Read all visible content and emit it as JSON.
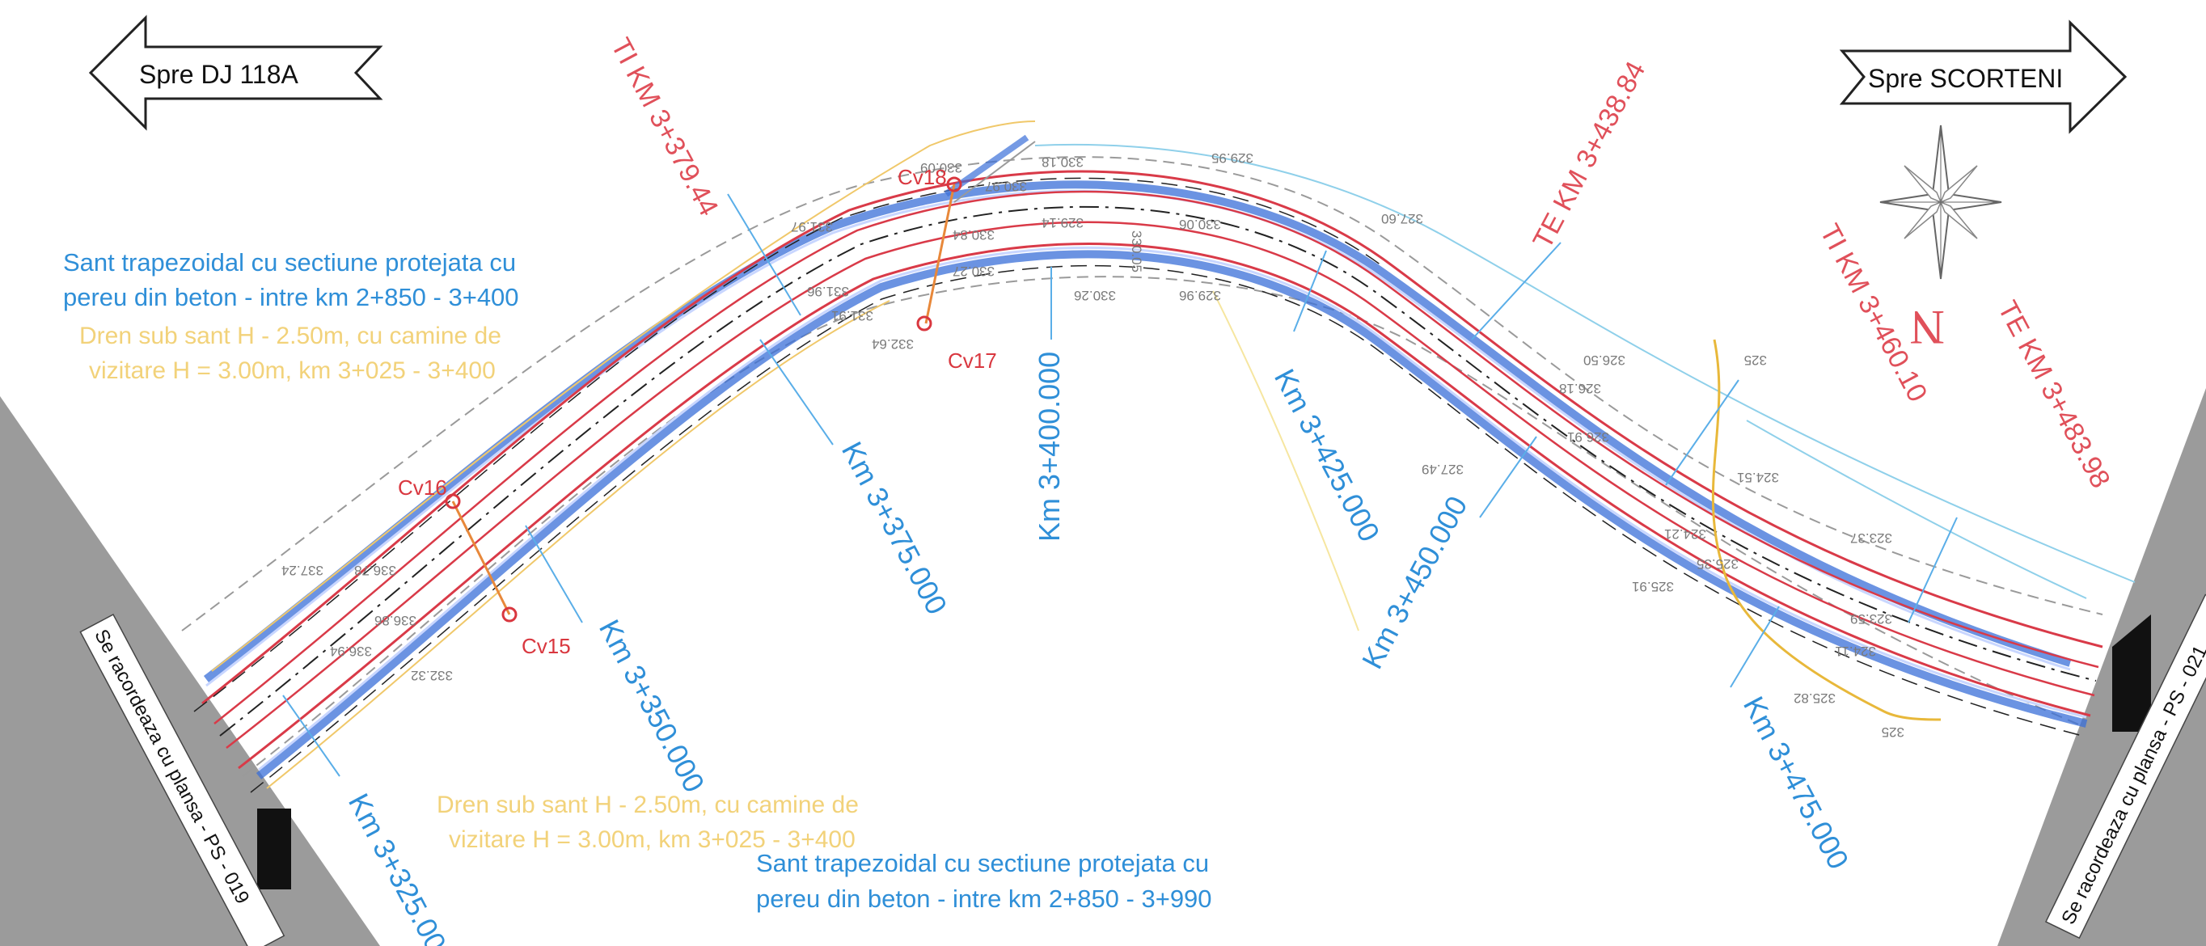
{
  "arrows": {
    "left_label": "Spre DJ 118A",
    "right_label": "Spre SCORTENI"
  },
  "north": {
    "letter": "N",
    "icon": "compass-rose-icon"
  },
  "notes": {
    "sant_top_line1": "Sant trapezoidal cu sectiune protejata cu",
    "sant_top_line2": "pereu din beton - intre km 2+850 - 3+400",
    "dren_top_line1": "Dren sub sant H - 2.50m, cu camine de",
    "dren_top_line2": "vizitare H = 3.00m, km 3+025 - 3+400",
    "dren_bottom_line1": "Dren sub sant H - 2.50m, cu camine de",
    "dren_bottom_line2": "vizitare H = 3.00m, km 3+025 - 3+400",
    "sant_bottom_line1": "Sant trapezoidal cu sectiune protejata cu",
    "sant_bottom_line2": "pereu din beton - intre km 2+850 - 3+990"
  },
  "curve_points": {
    "ti_1": "TI KM 3+379.44",
    "te_1": "TE KM 3+438.84",
    "ti_2": "TI KM 3+460.10",
    "te_2": "TE KM 3+483.98"
  },
  "chainages": [
    "Km 3+325.000",
    "Km 3+350.000",
    "Km 3+375.000",
    "Km 3+400.000",
    "Km 3+425.000",
    "Km 3+450.000",
    "Km 3+475.000"
  ],
  "culverts": [
    "Cv15",
    "Cv16",
    "Cv17",
    "Cv18"
  ],
  "sheet_refs": {
    "left": "Se racordeaza cu plansa - PS - 019",
    "right": "Se racordeaza cu plansa - PS - 021"
  },
  "elevations": [
    "337.24",
    "336.78",
    "336.86",
    "336.94",
    "332.32",
    "331.97",
    "331.96",
    "331.91",
    "332.64",
    "330.84",
    "330.27",
    "330.09",
    "330.97",
    "330.18",
    "330.05",
    "329.14",
    "330.06",
    "329.96",
    "330.26",
    "329.95",
    "327.60",
    "326.50",
    "326.18",
    "326.91",
    "327.49",
    "324.51",
    "324.21",
    "325.91",
    "325.35",
    "325.82",
    "323.37",
    "323.59",
    "324.11",
    "325",
    "325"
  ],
  "colors": {
    "road_edge": "#d93a48",
    "ditch": "#3a6fd8",
    "drain": "#f0c86a",
    "chainage": "#2f8fd8",
    "terrain": "#9a9a9a"
  }
}
